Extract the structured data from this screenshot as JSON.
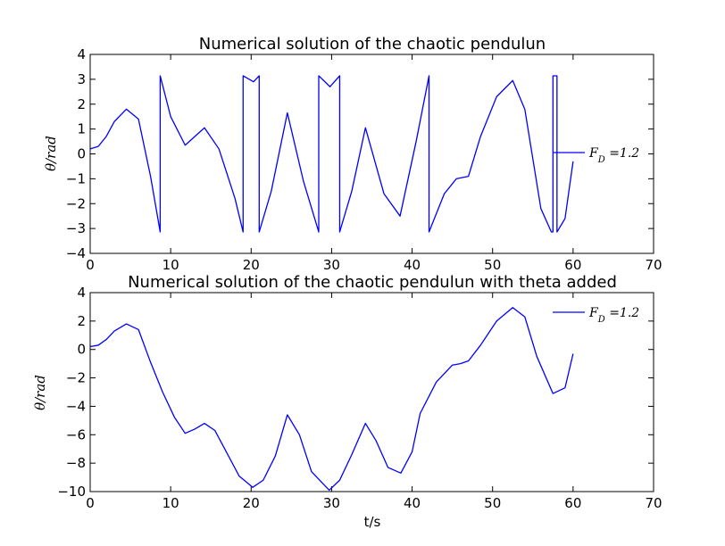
{
  "chart_data": [
    {
      "type": "line",
      "title": "Numerical solution of the chaotic pendulun",
      "xlabel": "",
      "ylabel": "θ/rad",
      "xlim": [
        0,
        70
      ],
      "ylim": [
        -4,
        4
      ],
      "xticks": [
        "0",
        "10",
        "20",
        "30",
        "40",
        "50",
        "60",
        "70"
      ],
      "yticks": [
        "4",
        "3",
        "2",
        "1",
        "0",
        "−1",
        "−2",
        "−3",
        "−4"
      ],
      "legend": "center-right",
      "grid": false,
      "color": "#0000ff",
      "series": [
        {
          "name": "F_D =1.2",
          "x": [
            0,
            1,
            2,
            3,
            4.5,
            6,
            7.5,
            8.7,
            8.7,
            10,
            11.8,
            13,
            14.2,
            16,
            18,
            19,
            19,
            20.3,
            21,
            21,
            22.5,
            24.5,
            26.5,
            28.4,
            28.4,
            29.8,
            31,
            31,
            32.5,
            34.2,
            36.5,
            38.5,
            40.5,
            42.1,
            42.1,
            44,
            45.5,
            47,
            48.5,
            50.5,
            52.5,
            54,
            56,
            57.3,
            57.5,
            57.5,
            58,
            58,
            59,
            60
          ],
          "y": [
            0.2,
            0.3,
            0.7,
            1.3,
            1.8,
            1.4,
            -0.9,
            -3.14,
            3.14,
            1.5,
            0.35,
            0.7,
            1.05,
            0.2,
            -1.8,
            -3.14,
            3.14,
            2.9,
            3.14,
            -3.14,
            -1.5,
            1.65,
            -1.1,
            -3.14,
            3.14,
            2.7,
            3.14,
            -3.14,
            -1.5,
            1.05,
            -1.6,
            -2.5,
            0.5,
            3.14,
            -3.14,
            -1.6,
            -1,
            -0.9,
            0.7,
            2.3,
            2.95,
            1.8,
            -2.2,
            -3.14,
            -3.14,
            3.14,
            3.14,
            -3.14,
            -2.6,
            -0.3
          ]
        }
      ]
    },
    {
      "type": "line",
      "title": "Numerical solution of the chaotic pendulun with theta added",
      "xlabel": "t/s",
      "ylabel": "θ/rad",
      "xlim": [
        0,
        70
      ],
      "ylim": [
        -10,
        4
      ],
      "xticks": [
        "0",
        "10",
        "20",
        "30",
        "40",
        "50",
        "60",
        "70"
      ],
      "yticks": [
        "4",
        "2",
        "0",
        "−2",
        "−4",
        "−6",
        "−8",
        "−10"
      ],
      "legend": "top-right",
      "grid": false,
      "color": "#0000ff",
      "series": [
        {
          "name": "F_D =1.2",
          "x": [
            0,
            1,
            2,
            3,
            4.5,
            6,
            7.5,
            9,
            10.5,
            11.8,
            13,
            14.2,
            15.5,
            17,
            18.5,
            20.2,
            21.5,
            23,
            24.5,
            26,
            27.5,
            29.7,
            31,
            32.5,
            34.2,
            35.5,
            37,
            38.6,
            40,
            41,
            43,
            45,
            46,
            47,
            48.5,
            50.5,
            52.5,
            54,
            55.5,
            57.5,
            59,
            60
          ],
          "y": [
            0.2,
            0.3,
            0.7,
            1.3,
            1.8,
            1.4,
            -0.9,
            -3.0,
            -4.8,
            -5.9,
            -5.6,
            -5.2,
            -5.7,
            -7.3,
            -8.9,
            -9.7,
            -9.2,
            -7.5,
            -4.6,
            -6.0,
            -8.6,
            -9.9,
            -9.2,
            -7.4,
            -5.2,
            -6.4,
            -8.3,
            -8.7,
            -7.2,
            -4.5,
            -2.3,
            -1.1,
            -1.0,
            -0.8,
            0.3,
            2.0,
            2.95,
            2.3,
            -0.5,
            -3.1,
            -2.7,
            -0.3
          ]
        }
      ]
    }
  ]
}
